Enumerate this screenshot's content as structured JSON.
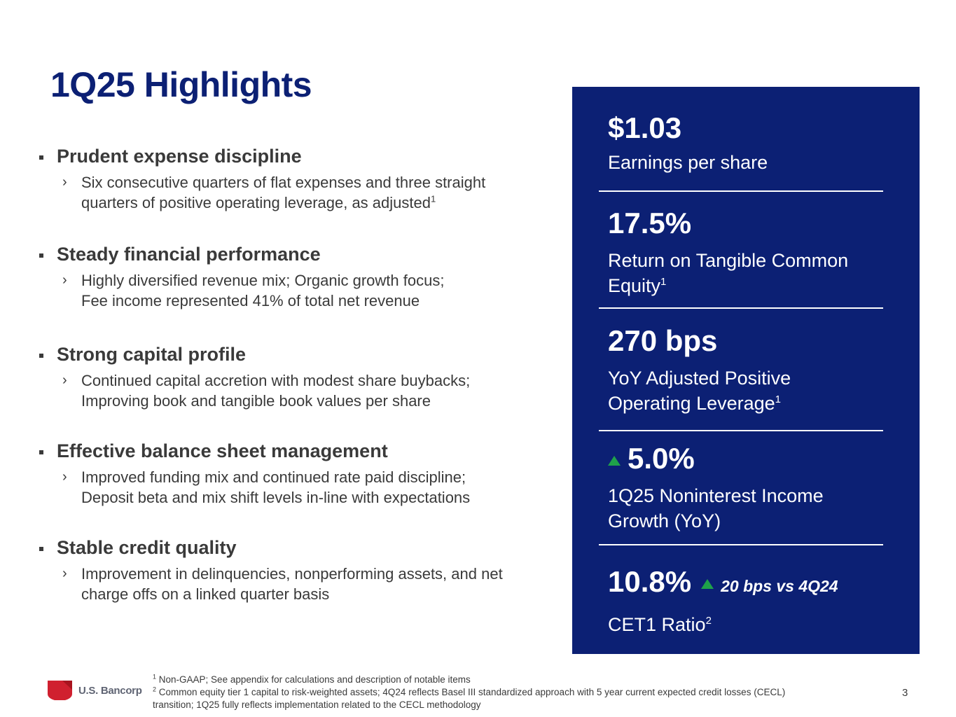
{
  "title": "1Q25 Highlights",
  "bullets": [
    {
      "heading": "Prudent expense discipline",
      "lines": [
        "Six consecutive quarters of flat expenses and three straight",
        "quarters of positive operating leverage, as adjusted"
      ],
      "sup": "1"
    },
    {
      "heading": "Steady financial performance",
      "lines": [
        "Highly diversified revenue mix; Organic growth focus;",
        "Fee income represented 41% of total net revenue"
      ],
      "sup": ""
    },
    {
      "heading": "Strong capital profile",
      "lines": [
        "Continued capital accretion with modest share buybacks;",
        "Improving book and tangible book values per share"
      ],
      "sup": ""
    },
    {
      "heading": "Effective balance sheet management",
      "lines": [
        "Improved funding mix and continued rate paid discipline;",
        "Deposit beta and mix shift levels in-line with expectations"
      ],
      "sup": ""
    },
    {
      "heading": "Stable credit quality",
      "lines": [
        "Improvement in delinquencies, nonperforming assets, and net",
        "charge offs on a linked quarter basis"
      ],
      "sup": ""
    }
  ],
  "metrics": [
    {
      "value": "$1.03",
      "label_lines": [
        "Earnings per share"
      ],
      "sup": ""
    },
    {
      "value": "17.5%",
      "label_lines": [
        "Return on Tangible Common",
        "Equity"
      ],
      "sup": "1"
    },
    {
      "value": "270 bps",
      "label_lines": [
        "YoY Adjusted Positive",
        "Operating Leverage"
      ],
      "sup": "1"
    },
    {
      "value": "5.0%",
      "label_lines": [
        "1Q25 Noninterest Income",
        "Growth (YoY)"
      ],
      "sup": "",
      "arrow": "up-arrow-icon"
    },
    {
      "value": "10.8%",
      "delta": "20 bps vs 4Q24",
      "label_lines": [
        "CET1 Ratio"
      ],
      "sup": "2",
      "delta_arrow": "up-arrow-icon"
    }
  ],
  "colors": {
    "navy": "#0c2074",
    "green": "#1fa24a",
    "red": "#d0202f",
    "text": "#3a3a3a"
  },
  "footer": {
    "logo_text": "U.S. Bancorp",
    "logo_icon": "shield-logo-icon",
    "footnote1_mark": "1",
    "footnote1": "Non-GAAP; See appendix for calculations and description of notable items",
    "footnote2_mark": "2",
    "footnote2_line1": "Common equity tier 1 capital to risk-weighted assets; 4Q24 reflects Basel III standardized approach with 5 year current expected credit losses (CECL)",
    "footnote2_line2": "transition; 1Q25 fully reflects implementation related to the CECL methodology",
    "page_number": "3"
  }
}
